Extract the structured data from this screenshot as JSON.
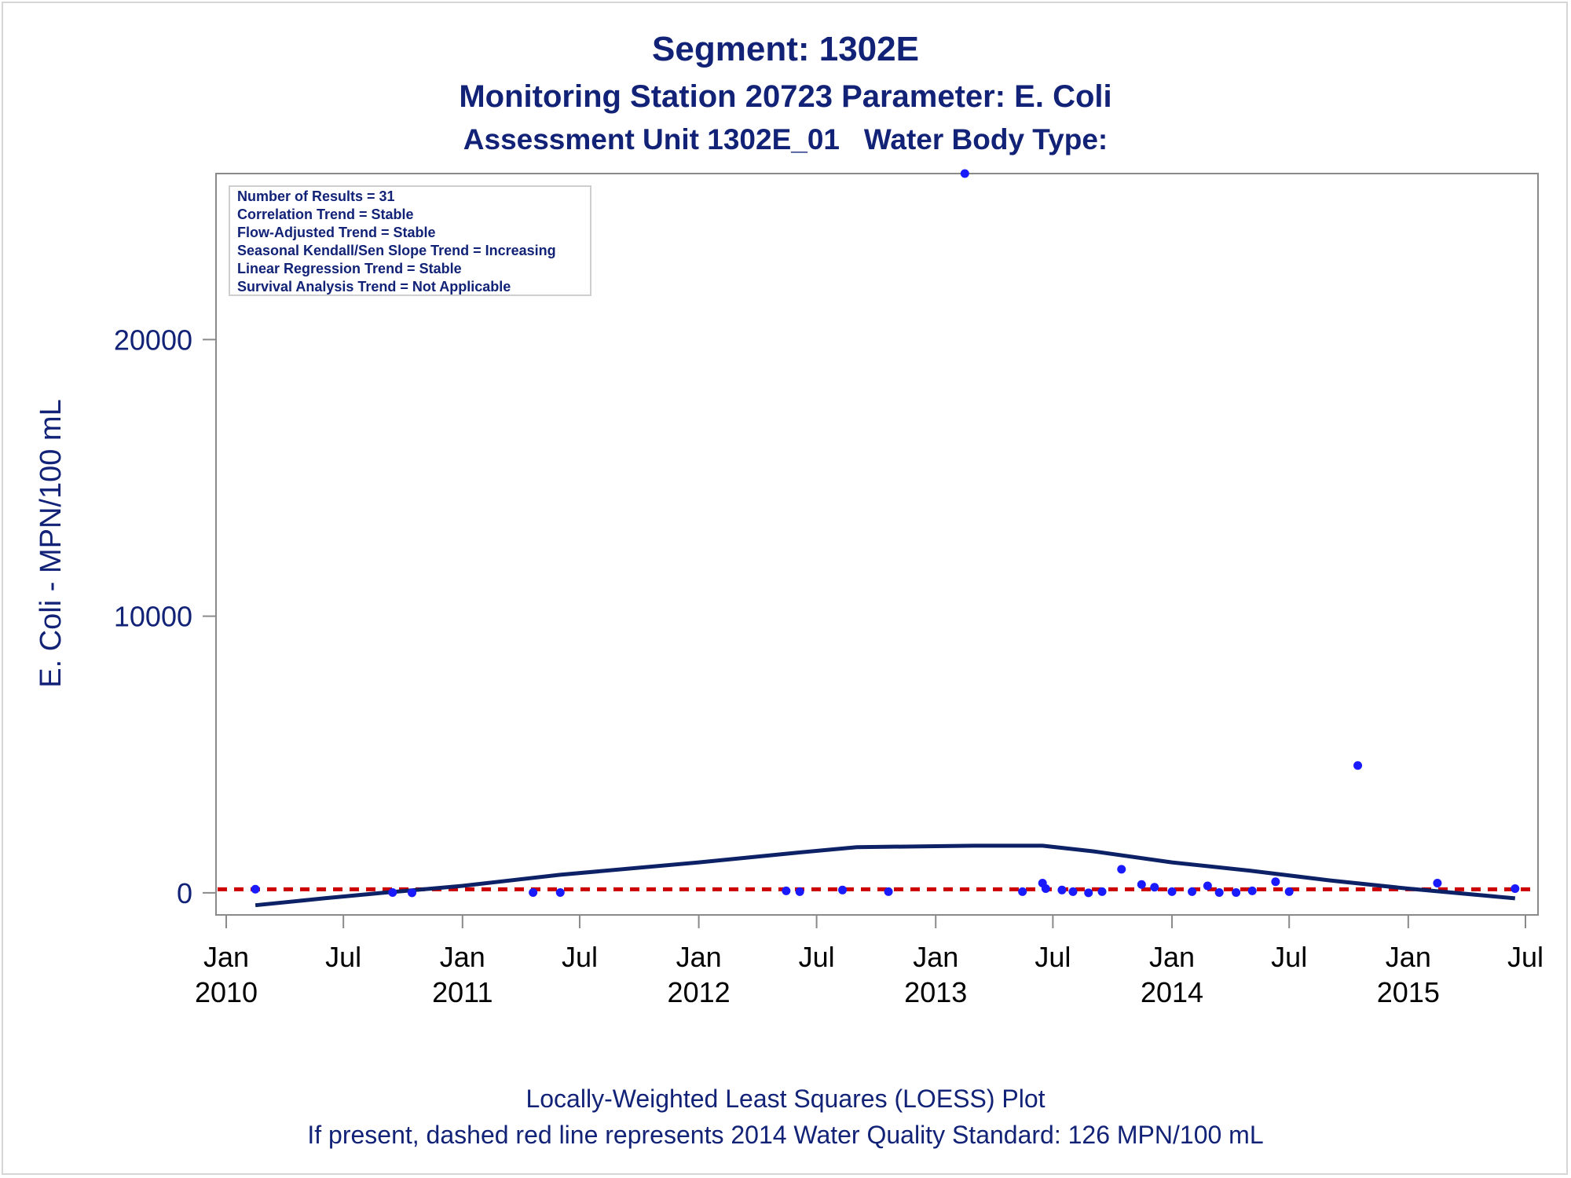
{
  "titles": {
    "title": "Segment: 1302E",
    "subtitle": "Monitoring Station 20723 Parameter: E. Coli",
    "subtitle2": "Assessment Unit 1302E_01   Water Body Type:"
  },
  "footnotes": {
    "line1": "Locally-Weighted Least Squares (LOESS) Plot",
    "line2": "If present, dashed red line represents 2014 Water Quality Standard: 126 MPN/100 mL"
  },
  "legend": {
    "lines": [
      "Number of Results = 31",
      "Correlation Trend = Stable",
      "Flow-Adjusted Trend = Stable",
      "Seasonal Kendall/Sen Slope Trend = Increasing",
      "Linear Regression Trend = Stable",
      "Survival Analysis Trend = Not Applicable"
    ]
  },
  "colors": {
    "text": "#112277",
    "points": "#1a1aff",
    "loess": "#0d2266",
    "standard_line": "#cc0000",
    "axis": "#8a8a8a"
  },
  "chart_data": {
    "type": "scatter",
    "ylabel": "E. Coli - MPN/100 mL",
    "xlabel": "",
    "xlim": [
      "2010-01-01",
      "2015-07-01"
    ],
    "ylim": [
      -800,
      26000
    ],
    "y_ticks": [
      0,
      10000,
      20000
    ],
    "x_ticks": [
      {
        "date": "2010-01-01",
        "label": [
          "Jan",
          "2010"
        ]
      },
      {
        "date": "2010-07-01",
        "label": [
          "Jul",
          ""
        ]
      },
      {
        "date": "2011-01-01",
        "label": [
          "Jan",
          "2011"
        ]
      },
      {
        "date": "2011-07-01",
        "label": [
          "Jul",
          ""
        ]
      },
      {
        "date": "2012-01-01",
        "label": [
          "Jan",
          "2012"
        ]
      },
      {
        "date": "2012-07-01",
        "label": [
          "Jul",
          ""
        ]
      },
      {
        "date": "2013-01-01",
        "label": [
          "Jan",
          "2013"
        ]
      },
      {
        "date": "2013-07-01",
        "label": [
          "Jul",
          ""
        ]
      },
      {
        "date": "2014-01-01",
        "label": [
          "Jan",
          "2014"
        ]
      },
      {
        "date": "2014-07-01",
        "label": [
          "Jul",
          ""
        ]
      },
      {
        "date": "2015-01-01",
        "label": [
          "Jan",
          "2015"
        ]
      },
      {
        "date": "2015-07-01",
        "label": [
          "Jul",
          ""
        ]
      }
    ],
    "standard_line": {
      "y": 126
    },
    "series": [
      {
        "points": [
          {
            "x": "2010-02-15",
            "y": 130
          },
          {
            "x": "2010-09-15",
            "y": 10
          },
          {
            "x": "2010-10-15",
            "y": 0
          },
          {
            "x": "2011-04-20",
            "y": 10
          },
          {
            "x": "2011-06-01",
            "y": 10
          },
          {
            "x": "2012-05-15",
            "y": 70
          },
          {
            "x": "2012-06-05",
            "y": 40
          },
          {
            "x": "2012-08-10",
            "y": 100
          },
          {
            "x": "2012-10-20",
            "y": 40
          },
          {
            "x": "2013-02-15",
            "y": 26000
          },
          {
            "x": "2013-05-15",
            "y": 40
          },
          {
            "x": "2013-06-15",
            "y": 350
          },
          {
            "x": "2013-06-20",
            "y": 150
          },
          {
            "x": "2013-07-15",
            "y": 100
          },
          {
            "x": "2013-08-01",
            "y": 40
          },
          {
            "x": "2013-08-25",
            "y": 0
          },
          {
            "x": "2013-09-15",
            "y": 40
          },
          {
            "x": "2013-10-15",
            "y": 850
          },
          {
            "x": "2013-11-15",
            "y": 300
          },
          {
            "x": "2013-12-05",
            "y": 200
          },
          {
            "x": "2014-01-01",
            "y": 40
          },
          {
            "x": "2014-02-01",
            "y": 40
          },
          {
            "x": "2014-02-25",
            "y": 250
          },
          {
            "x": "2014-03-15",
            "y": 10
          },
          {
            "x": "2014-04-10",
            "y": 10
          },
          {
            "x": "2014-05-05",
            "y": 70
          },
          {
            "x": "2014-06-10",
            "y": 400
          },
          {
            "x": "2014-07-01",
            "y": 40
          },
          {
            "x": "2014-10-15",
            "y": 4600
          },
          {
            "x": "2015-02-15",
            "y": 350
          },
          {
            "x": "2015-06-15",
            "y": 150
          }
        ]
      },
      {
        "loess": [
          {
            "x": "2010-02-15",
            "y": -450
          },
          {
            "x": "2010-06-01",
            "y": -200
          },
          {
            "x": "2010-09-01",
            "y": 0
          },
          {
            "x": "2011-01-01",
            "y": 250
          },
          {
            "x": "2011-06-01",
            "y": 650
          },
          {
            "x": "2012-01-01",
            "y": 1100
          },
          {
            "x": "2012-06-01",
            "y": 1450
          },
          {
            "x": "2012-09-01",
            "y": 1650
          },
          {
            "x": "2013-03-01",
            "y": 1700
          },
          {
            "x": "2013-06-15",
            "y": 1700
          },
          {
            "x": "2013-09-01",
            "y": 1500
          },
          {
            "x": "2014-01-01",
            "y": 1100
          },
          {
            "x": "2014-05-01",
            "y": 800
          },
          {
            "x": "2014-09-01",
            "y": 450
          },
          {
            "x": "2015-01-01",
            "y": 150
          },
          {
            "x": "2015-06-15",
            "y": -200
          }
        ]
      }
    ]
  }
}
